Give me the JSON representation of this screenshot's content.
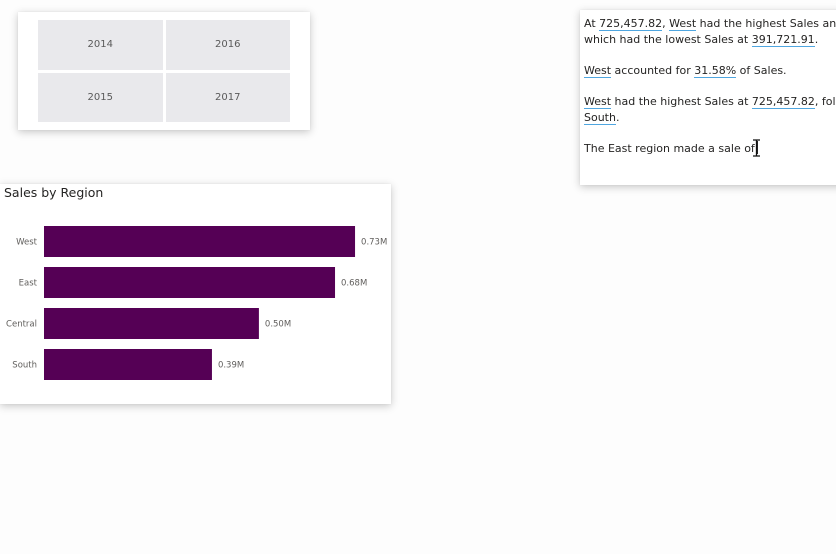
{
  "slicer": {
    "tiles": [
      "2014",
      "2016",
      "2015",
      "2017"
    ]
  },
  "chart_data": {
    "type": "bar",
    "orientation": "horizontal",
    "title": "Sales by Region",
    "categories": [
      "West",
      "East",
      "Central",
      "South"
    ],
    "values": [
      725457.82,
      678781.24,
      501239.89,
      391721.91
    ],
    "value_labels": [
      "0.73M",
      "0.68M",
      "0.50M",
      "0.39M"
    ],
    "xlim": [
      0,
      800000
    ],
    "bar_color": "#550055",
    "grid": false,
    "legend": "none"
  },
  "narrative": {
    "line1_pre": "At ",
    "line1_val1": "725,457.82",
    "line1_mid": ", ",
    "line1_val2": "West",
    "line1_post": " had the highest Sales and was",
    "line2_pre": "which had the lowest Sales at ",
    "line2_val": "391,721.91",
    "line2_post": ".",
    "para2_val1": "West",
    "para2_mid": " accounted for ",
    "para2_val2": "31.58%",
    "para2_post": " of Sales.",
    "para3_val1": "West",
    "para3_mid": " had the highest Sales at ",
    "para3_val2": "725,457.82",
    "para3_post": ", followed",
    "para3_line2_val": "South",
    "para3_line2_post": ".",
    "typing_text": "The East region made a sale of"
  },
  "colors": {
    "accent_underline": "#4fa6e0",
    "tile_bg": "#e9e9ec"
  }
}
